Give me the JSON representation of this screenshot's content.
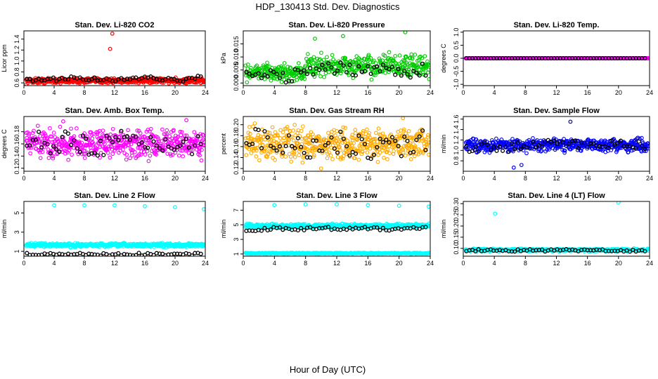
{
  "figure": {
    "title": "HDP_130413  Std. Dev. Diagnostics",
    "xlabel": "Hour of Day (UTC)"
  },
  "chart_data": [
    {
      "type": "scatter",
      "title": "Stan. Dev. Li-820 CO2",
      "ylabel": "Licor ppm",
      "xlim": [
        0,
        24
      ],
      "ylim": [
        0.55,
        1.55
      ],
      "xticks": [
        0,
        4,
        8,
        12,
        16,
        20,
        24
      ],
      "yticks": [
        0.6,
        0.8,
        1.0,
        1.2,
        1.4
      ],
      "ytick_labels": [
        "0.6",
        "0.8",
        "1.0",
        "1.2",
        "1.4"
      ],
      "color": "#ff0000",
      "dense_band": [
        0.58,
        0.7
      ],
      "outliers": [
        [
          11.7,
          1.5
        ],
        [
          11.4,
          1.22
        ]
      ],
      "hourly_means": [
        [
          0.5,
          0.64
        ],
        [
          2.5,
          0.66
        ],
        [
          4.5,
          0.67
        ],
        [
          6.5,
          0.7
        ],
        [
          8.5,
          0.66
        ],
        [
          10.5,
          0.68
        ],
        [
          12.5,
          0.65
        ],
        [
          14.5,
          0.67
        ],
        [
          16.5,
          0.7
        ],
        [
          18.5,
          0.66
        ],
        [
          20.5,
          0.65
        ],
        [
          22.5,
          0.67
        ],
        [
          23.8,
          0.78
        ]
      ]
    },
    {
      "type": "scatter",
      "title": "Stan. Dev. Li-820 Pressure",
      "ylabel": "kPa",
      "xlim": [
        0,
        24
      ],
      "ylim": [
        -0.001,
        0.02
      ],
      "xticks": [
        0,
        4,
        8,
        12,
        16,
        20,
        24
      ],
      "yticks": [
        0,
        0.005,
        0.01,
        0.015
      ],
      "ytick_labels": [
        "0.000",
        "0.005",
        "0.010",
        "0.015"
      ],
      "color": "#00cc00",
      "dense_band": [
        0.0,
        0.008
      ],
      "outliers": [
        [
          12.8,
          0.018
        ],
        [
          20.8,
          0.0195
        ],
        [
          9.2,
          0.017
        ]
      ],
      "hourly_means": [
        [
          0.5,
          0.002
        ],
        [
          2.5,
          0.003
        ],
        [
          4.5,
          0.002
        ],
        [
          6.5,
          0.003
        ],
        [
          8.5,
          0.004
        ],
        [
          10.5,
          0.005
        ],
        [
          12.5,
          0.006
        ],
        [
          14.5,
          0.005
        ],
        [
          16.5,
          0.006
        ],
        [
          18.5,
          0.005
        ],
        [
          20.5,
          0.004
        ],
        [
          22.5,
          0.005
        ],
        [
          23.8,
          0.005
        ]
      ]
    },
    {
      "type": "scatter",
      "title": "Stan. Dev. Li-820 Temp.",
      "ylabel": "degrees C",
      "xlim": [
        0,
        24
      ],
      "ylim": [
        -1.05,
        1.05
      ],
      "xticks": [
        0,
        4,
        8,
        12,
        16,
        20,
        24
      ],
      "yticks": [
        -1,
        -0.5,
        0,
        0.5,
        1
      ],
      "ytick_labels": [
        "-1.0",
        "-0.5",
        "0.0",
        "0.5",
        "1.0"
      ],
      "color": "#ff00ff",
      "dense_band": [
        0,
        0
      ],
      "outliers": [],
      "hourly_means": [
        [
          0.5,
          0
        ],
        [
          2.5,
          0
        ],
        [
          4.5,
          0
        ],
        [
          6.5,
          0
        ],
        [
          8.5,
          0
        ],
        [
          10.5,
          0
        ],
        [
          12.5,
          0
        ],
        [
          14.5,
          0
        ],
        [
          16.5,
          0
        ],
        [
          18.5,
          0
        ],
        [
          20.5,
          0
        ],
        [
          22.5,
          0
        ],
        [
          23.8,
          0
        ]
      ]
    },
    {
      "type": "scatter",
      "title": "Stan. Dev. Amb. Box Temp.",
      "ylabel": "degrees C",
      "xlim": [
        0,
        24
      ],
      "ylim": [
        0.115,
        0.205
      ],
      "xticks": [
        0,
        4,
        8,
        12,
        16,
        20,
        24
      ],
      "yticks": [
        0.12,
        0.14,
        0.16,
        0.18
      ],
      "ytick_labels": [
        "0.12",
        "0.14",
        "0.16",
        "0.18"
      ],
      "color": "#ff00ff",
      "dense_band": [
        0.13,
        0.19
      ],
      "outliers": [
        [
          21.5,
          0.199
        ],
        [
          5.2,
          0.197
        ]
      ],
      "hourly_means": [
        [
          0.5,
          0.16
        ],
        [
          2.5,
          0.165
        ],
        [
          4.5,
          0.158
        ],
        [
          6.5,
          0.167
        ],
        [
          8.5,
          0.16
        ],
        [
          10.5,
          0.157
        ],
        [
          12.5,
          0.165
        ],
        [
          14.5,
          0.162
        ],
        [
          16.5,
          0.158
        ],
        [
          18.5,
          0.16
        ],
        [
          20.5,
          0.163
        ],
        [
          22.5,
          0.158
        ],
        [
          23.8,
          0.16
        ]
      ]
    },
    {
      "type": "scatter",
      "title": "Stan. Dev. Gas Stream RH",
      "ylabel": "percent",
      "xlim": [
        0,
        24
      ],
      "ylim": [
        0.115,
        0.215
      ],
      "xticks": [
        0,
        4,
        8,
        12,
        16,
        20,
        24
      ],
      "yticks": [
        0.12,
        0.14,
        0.16,
        0.18,
        0.2
      ],
      "ytick_labels": [
        "0.12",
        "0.14",
        "0.16",
        "0.18",
        "0.20"
      ],
      "color": "#ffaa00",
      "dense_band": [
        0.13,
        0.2
      ],
      "outliers": [
        [
          20.5,
          0.212
        ],
        [
          10.0,
          0.12
        ]
      ],
      "hourly_means": [
        [
          0.5,
          0.18
        ],
        [
          2.5,
          0.175
        ],
        [
          4.5,
          0.162
        ],
        [
          6.5,
          0.165
        ],
        [
          8.5,
          0.16
        ],
        [
          10.5,
          0.162
        ],
        [
          12.5,
          0.17
        ],
        [
          14.5,
          0.16
        ],
        [
          16.5,
          0.158
        ],
        [
          18.5,
          0.165
        ],
        [
          20.5,
          0.16
        ],
        [
          22.5,
          0.17
        ],
        [
          23.8,
          0.175
        ]
      ]
    },
    {
      "type": "scatter",
      "title": "Stan. Dev. Sample Flow",
      "ylabel": "ml/min",
      "xlim": [
        0,
        24
      ],
      "ylim": [
        0.6,
        1.65
      ],
      "xticks": [
        0,
        4,
        8,
        12,
        16,
        20,
        24
      ],
      "yticks": [
        0.8,
        1.0,
        1.2,
        1.4,
        1.6
      ],
      "ytick_labels": [
        "0.8",
        "1.0",
        "1.2",
        "1.4",
        "1.6"
      ],
      "color": "#0000ff",
      "dense_band": [
        0.95,
        1.25
      ],
      "outliers": [
        [
          6.5,
          0.67
        ],
        [
          13.8,
          1.55
        ],
        [
          7.5,
          0.72
        ]
      ],
      "hourly_means": [
        [
          0.5,
          1.05
        ],
        [
          2.5,
          1.08
        ],
        [
          4.5,
          1.05
        ],
        [
          6.5,
          1.05
        ],
        [
          8.5,
          1.1
        ],
        [
          10.5,
          1.12
        ],
        [
          12.5,
          1.15
        ],
        [
          14.5,
          1.12
        ],
        [
          16.5,
          1.1
        ],
        [
          18.5,
          1.13
        ],
        [
          20.5,
          1.12
        ],
        [
          22.5,
          1.1
        ],
        [
          23.8,
          1.12
        ]
      ]
    },
    {
      "type": "scatter",
      "title": "Stan. Dev. Line 2 Flow",
      "ylabel": "ml/min",
      "xlim": [
        0,
        24
      ],
      "ylim": [
        0.5,
        6.2
      ],
      "xticks": [
        0,
        4,
        8,
        12,
        16,
        20,
        24
      ],
      "yticks": [
        1,
        3,
        5
      ],
      "ytick_labels": [
        "1",
        "3",
        "5"
      ],
      "color": "#00ffff",
      "dense_band": [
        1.4,
        1.9
      ],
      "outliers": [
        [
          4,
          5.8
        ],
        [
          8,
          5.8
        ],
        [
          12,
          5.8
        ],
        [
          16,
          5.7
        ],
        [
          20,
          5.6
        ],
        [
          23.8,
          5.4
        ]
      ],
      "hourly_means": [
        [
          0.5,
          0.7
        ],
        [
          2.5,
          0.7
        ],
        [
          4.5,
          0.7
        ],
        [
          6.5,
          0.7
        ],
        [
          8.5,
          0.7
        ],
        [
          10.5,
          0.7
        ],
        [
          12.5,
          0.7
        ],
        [
          14.5,
          0.7
        ],
        [
          16.5,
          0.7
        ],
        [
          18.5,
          0.7
        ],
        [
          20.5,
          0.7
        ],
        [
          22.5,
          0.7
        ],
        [
          23.8,
          0.7
        ]
      ]
    },
    {
      "type": "scatter",
      "title": "Stan. Dev. Line 3 Flow",
      "ylabel": "ml/min",
      "xlim": [
        0,
        24
      ],
      "ylim": [
        0.7,
        8.2
      ],
      "xticks": [
        0,
        4,
        8,
        12,
        16,
        20,
        24
      ],
      "yticks": [
        1,
        3,
        5,
        7
      ],
      "ytick_labels": [
        "1",
        "3",
        "5",
        "7"
      ],
      "color": "#00ffff",
      "dense_band": [
        4.5,
        5.2
      ],
      "baseline": 1.1,
      "outliers": [
        [
          4,
          7.7
        ],
        [
          8,
          7.8
        ],
        [
          12,
          7.8
        ],
        [
          16,
          7.7
        ],
        [
          20,
          7.6
        ],
        [
          23.8,
          7.5
        ]
      ],
      "hourly_means": [
        [
          0.5,
          4.3
        ],
        [
          2.5,
          4.4
        ],
        [
          4.5,
          4.5
        ],
        [
          6.5,
          4.4
        ],
        [
          8.5,
          4.5
        ],
        [
          10.5,
          4.5
        ],
        [
          12.5,
          4.5
        ],
        [
          14.5,
          4.6
        ],
        [
          16.5,
          4.5
        ],
        [
          18.5,
          4.4
        ],
        [
          20.5,
          4.4
        ],
        [
          22.5,
          4.6
        ],
        [
          23.8,
          4.5
        ]
      ]
    },
    {
      "type": "scatter",
      "title": "Stan. Dev. Line 4 (LT) Flow",
      "ylabel": "ml/min",
      "xlim": [
        0,
        24
      ],
      "ylim": [
        0.065,
        0.31
      ],
      "xticks": [
        0,
        4,
        8,
        12,
        16,
        20,
        24
      ],
      "yticks": [
        0.1,
        0.15,
        0.2,
        0.25,
        0.3
      ],
      "ytick_labels": [
        "0.10",
        "0.15",
        "0.20",
        "0.25",
        "0.30"
      ],
      "color": "#00ffff",
      "dense_band": [
        0.085,
        0.1
      ],
      "outliers": [
        [
          4.1,
          0.255
        ],
        [
          20,
          0.305
        ]
      ],
      "hourly_means": [
        [
          0.5,
          0.09
        ],
        [
          2.5,
          0.092
        ],
        [
          4.5,
          0.09
        ],
        [
          6.5,
          0.09
        ],
        [
          8.5,
          0.092
        ],
        [
          10.5,
          0.09
        ],
        [
          12.5,
          0.093
        ],
        [
          14.5,
          0.09
        ],
        [
          16.5,
          0.09
        ],
        [
          18.5,
          0.091
        ],
        [
          20.5,
          0.09
        ],
        [
          22.5,
          0.09
        ],
        [
          23.8,
          0.09
        ]
      ]
    }
  ]
}
